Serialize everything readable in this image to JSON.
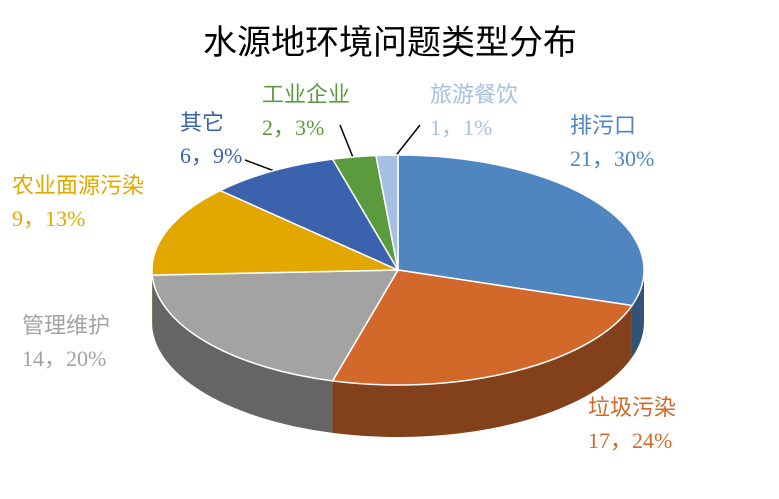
{
  "chart_data": {
    "type": "pie",
    "title": "水源地环境问题类型分布",
    "categories": [
      "排污口",
      "垃圾污染",
      "管理维护",
      "农业面源污染",
      "其它",
      "工业企业",
      "旅游餐饮"
    ],
    "values": [
      21,
      17,
      14,
      9,
      6,
      2,
      1
    ],
    "value_labels": [
      "21，30%",
      "17，24%",
      "14，20%",
      "9，13%",
      "6，9%",
      "2，3%",
      "1，1%"
    ],
    "colors": [
      "#4f86c0",
      "#d2692a",
      "#a3a3a3",
      "#e3a800",
      "#3b62ad",
      "#5b9b3d",
      "#a6c0e2"
    ]
  }
}
